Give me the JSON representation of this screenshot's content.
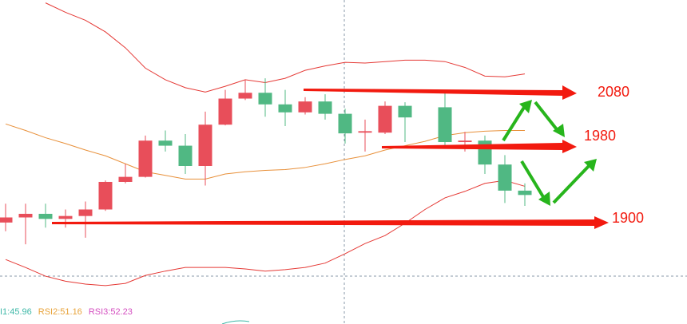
{
  "chart_data": {
    "type": "candlestick",
    "ylim": [
      1761,
      2208
    ],
    "up_color": "#e84e5a",
    "down_color": "#50b883",
    "open": [
      1901,
      1908,
      1913,
      1906,
      1910,
      1919,
      1957,
      1964,
      2014,
      2007,
      1979,
      2036,
      2072,
      2080,
      2064,
      2053,
      2068,
      2051,
      2025,
      2025,
      2062,
      null,
      2060,
      2012,
      2014,
      1981,
      1945
    ],
    "high": [
      1927,
      1927,
      1927,
      1919,
      1930,
      1959,
      1982,
      2021,
      2028,
      2023,
      2054,
      2084,
      2098,
      2100,
      2084,
      2074,
      2078,
      2058,
      2043,
      2068,
      2067,
      null,
      2080,
      2026,
      2021,
      1994,
      1955
    ],
    "low": [
      1889,
      1871,
      1894,
      1894,
      1880,
      1917,
      1955,
      1963,
      1999,
      1968,
      1952,
      2035,
      2070,
      2047,
      2034,
      2050,
      2043,
      2010,
      1999,
      2023,
      2012,
      null,
      2003,
      1999,
      1968,
      1928,
      1924
    ],
    "close": [
      1908,
      1913,
      1906,
      1910,
      1919,
      1957,
      1964,
      2014,
      2007,
      1979,
      2036,
      2072,
      2080,
      2064,
      2053,
      2068,
      2051,
      2024,
      2027,
      2062,
      2046,
      null,
      2012,
      2014,
      1981,
      1945,
      1939
    ],
    "bands": [
      {
        "color": "#e53935",
        "values": [
          null,
          null,
          2204,
          2191,
          2180,
          2164,
          2142,
          2114,
          2098,
          2087,
          2081,
          2089,
          2098,
          2094,
          2100,
          2111,
          2117,
          2122,
          2121,
          2123,
          2125,
          2125,
          2123,
          2115,
          2103,
          2102,
          2106
        ]
      },
      {
        "color": "#e8903a",
        "values": [
          2037,
          2028,
          2018,
          2010,
          2001,
          1993,
          1982,
          1971,
          1966,
          1961,
          1961,
          1968,
          1971,
          1973,
          1974,
          1977,
          1982,
          1988,
          1993,
          2001,
          2007,
          2013,
          2021,
          2025,
          2027,
          2028,
          2028
        ]
      },
      {
        "color": "#e53935",
        "values": [
          1850,
          1839,
          1827,
          1820,
          1816,
          1814,
          1817,
          1828,
          1834,
          1839,
          1839,
          1839,
          1837,
          1834,
          1836,
          1839,
          1845,
          1858,
          1872,
          1883,
          1900,
          1919,
          1935,
          1944,
          1955,
          1959,
          1951
        ]
      }
    ],
    "levels": [
      2080,
      1980,
      1900
    ],
    "indicators": [
      {
        "text": "I1:45.96",
        "color": "#3fb8a8"
      },
      {
        "text": "RSI2:51.16",
        "color": "#e8a33a"
      },
      {
        "text": "RSI3:52.23",
        "color": "#d44fc0"
      }
    ]
  }
}
